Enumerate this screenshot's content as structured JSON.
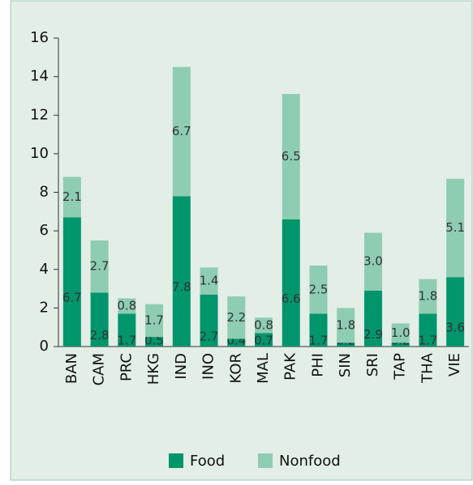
{
  "chart_data": {
    "type": "stacked_bar",
    "categories": [
      "BAN",
      "CAM",
      "PRC",
      "HKG",
      "IND",
      "INO",
      "KOR",
      "MAL",
      "PAK",
      "PHI",
      "SIN",
      "SRI",
      "TAP",
      "THA",
      "VIE"
    ],
    "series": [
      {
        "name": "Food",
        "color": "#00956b",
        "values": [
          6.7,
          2.8,
          1.7,
          0.5,
          7.8,
          2.7,
          0.4,
          0.7,
          6.6,
          1.7,
          0.2,
          2.9,
          0.2,
          1.7,
          3.6
        ]
      },
      {
        "name": "Nonfood",
        "color": "#8ecdb2",
        "values": [
          2.1,
          2.7,
          0.8,
          1.7,
          6.7,
          1.4,
          2.2,
          0.8,
          6.5,
          2.5,
          1.8,
          3.0,
          1.0,
          1.8,
          5.1
        ],
        "value_labels": [
          "2.1",
          "2.7",
          "0.8",
          "1.7",
          "6.7",
          "1.4",
          "2.2",
          "0.8",
          "6.5",
          "2.5",
          "1.8",
          "3.0",
          "1.0",
          "1.8",
          "5.1"
        ]
      }
    ],
    "ylim": [
      0,
      16
    ],
    "yticks": [
      0,
      2,
      4,
      6,
      8,
      10,
      12,
      14,
      16
    ],
    "legend": "bottom"
  }
}
